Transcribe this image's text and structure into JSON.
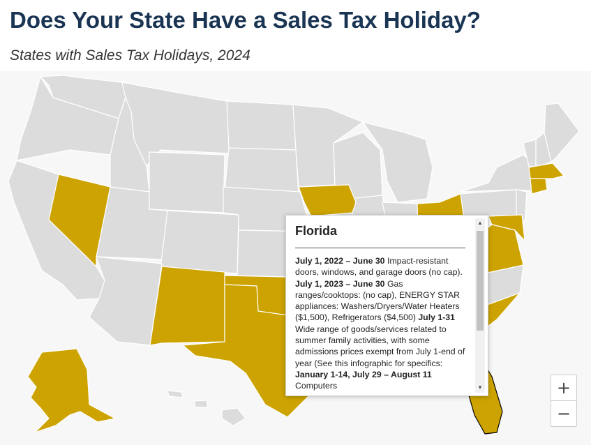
{
  "title": "Does Your State Have a Sales Tax Holiday?",
  "subtitle": "States with Sales Tax Holidays, 2024",
  "colors": {
    "holiday": "#cca300",
    "no_holiday": "#dcdcdc",
    "background": "#f7f7f7",
    "title": "#1a3553"
  },
  "states_with_holiday": [
    "Alaska",
    "Nevada",
    "New Mexico",
    "Texas",
    "Oklahoma",
    "Iowa",
    "Ohio",
    "Maryland",
    "Virginia",
    "South Carolina",
    "Florida",
    "Massachusetts",
    "Connecticut"
  ],
  "selected_state": "Florida",
  "tooltip": {
    "title": "Florida",
    "entries": [
      {
        "date": "July 1, 2022 – June 30",
        "text": " Impact-resistant doors, windows, and garage doors (no cap). "
      },
      {
        "date": "July 1, 2023 – June 30",
        "text": " Gas ranges/cooktops: (no cap), ENERGY STAR appliances: Washers/Dryers/Water Heaters ($1,500), Refrigerators ($4,500) "
      },
      {
        "date": "July 1-31",
        "text": " Wide range of goods/services related to summer family activities, with some admissions prices exempt from July 1-end of year (See this infographic for specifics: "
      },
      {
        "date": "January 1-14, July 29 – August 11",
        "text": " Computers"
      }
    ]
  },
  "zoom": {
    "in_label": "+",
    "out_label": "−"
  }
}
